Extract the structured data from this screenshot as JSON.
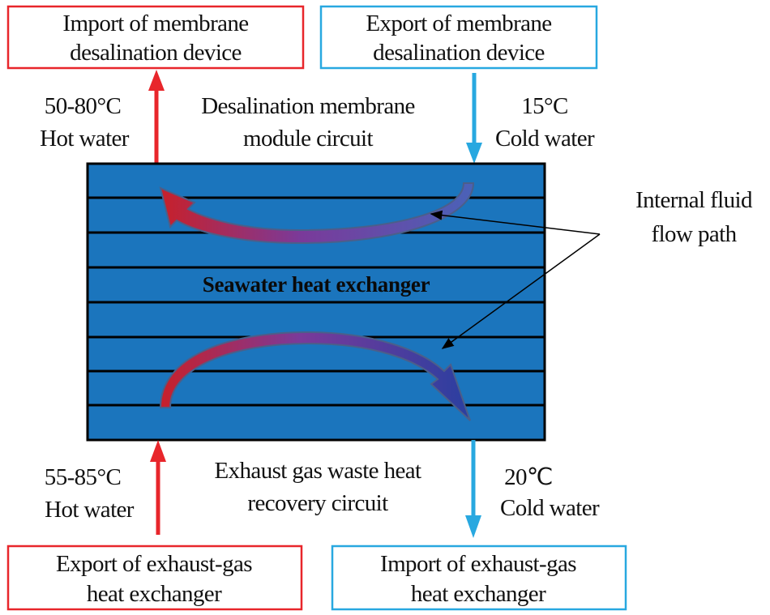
{
  "boxes": {
    "top_left": {
      "line1": "Import of membrane",
      "line2": "desalination device",
      "border_color": "#e8262b"
    },
    "top_right": {
      "line1": "Export of membrane",
      "line2": "desalination device",
      "border_color": "#28a8e0"
    },
    "bottom_left": {
      "line1": "Export of exhaust-gas",
      "line2": "heat exchanger",
      "border_color": "#e8262b"
    },
    "bottom_right": {
      "line1": "Import of exhaust-gas",
      "line2": "heat exchanger",
      "border_color": "#28a8e0"
    }
  },
  "labels": {
    "top_hot": {
      "temp": "50-80°C",
      "name": "Hot water"
    },
    "top_circuit": {
      "line1": "Desalination membrane",
      "line2": "module circuit"
    },
    "top_cold": {
      "temp": "15°C",
      "name": "Cold water"
    },
    "bottom_hot": {
      "temp": "55-85°C",
      "name": "Hot water"
    },
    "bottom_circuit": {
      "line1": "Exhaust gas waste heat",
      "line2": "recovery circuit"
    },
    "bottom_cold": {
      "temp": "20℃",
      "name": "Cold water"
    },
    "flow_path": {
      "line1": "Internal fluid",
      "line2": "flow path"
    }
  },
  "exchanger": {
    "title": "Seawater heat exchanger",
    "fill_color": "#1b75bd"
  },
  "colors": {
    "hot": "#e8262b",
    "cold": "#28a8e0"
  }
}
